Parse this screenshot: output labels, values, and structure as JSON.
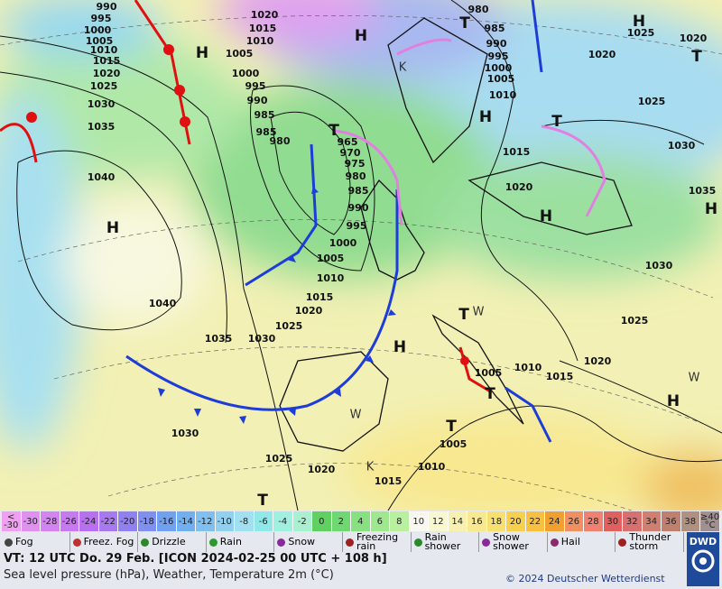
{
  "map": {
    "pressure_labels": [
      990,
      995,
      1000,
      1005,
      1010,
      1015,
      1020,
      1025,
      1030,
      1035,
      1040,
      1040,
      1035,
      1030,
      1025,
      1020,
      1015,
      1010,
      1005,
      1000,
      995,
      990,
      985,
      980,
      975,
      970,
      965,
      990,
      985,
      985,
      980,
      1000,
      995,
      1005,
      1010,
      1015,
      1020,
      980,
      985,
      990,
      995,
      1000,
      1005,
      1010,
      1015,
      1020,
      1025,
      1030,
      1035,
      1020,
      1020,
      1025,
      1030,
      1025,
      1020,
      1015,
      1010,
      1005,
      1005,
      1010,
      1015,
      1020,
      1025,
      1030
    ],
    "centers": [
      "H",
      "H",
      "H",
      "H",
      "H",
      "H",
      "H",
      "H",
      "H",
      "T",
      "T",
      "T",
      "T",
      "T",
      "T",
      "T",
      "T",
      "K",
      "K",
      "W",
      "W",
      "W"
    ]
  },
  "legend": {
    "low_label": [
      "<",
      "-30"
    ],
    "values": [
      -30,
      -28,
      -26,
      -24,
      -22,
      -20,
      -18,
      -16,
      -14,
      -12,
      -10,
      -8,
      -6,
      -4,
      -2,
      0,
      2,
      4,
      6,
      8,
      10,
      12,
      14,
      16,
      18,
      20,
      22,
      24,
      26,
      28,
      30,
      32,
      34,
      36,
      38
    ],
    "high_label": [
      "≥40",
      "°C"
    ],
    "colors": [
      "#f0a0f0",
      "#e090f0",
      "#d484f0",
      "#c878f0",
      "#b870f0",
      "#a878f0",
      "#9080f0",
      "#8090f0",
      "#70a0f0",
      "#70b0f0",
      "#80c0f0",
      "#90d0f0",
      "#a0e0f0",
      "#90e8e8",
      "#a0f0e0",
      "#a8f0d0",
      "#60d060",
      "#70d870",
      "#88e080",
      "#a0e890",
      "#b8f0a0",
      "#f8f8f0",
      "#f8f8d0",
      "#f8f0b0",
      "#f8e890",
      "#f8e070",
      "#f8d050",
      "#f8c040",
      "#f0a030",
      "#f09060",
      "#f08070",
      "#e06060",
      "#d87070",
      "#d08070",
      "#c08070",
      "#b09080",
      "#a09090"
    ],
    "weather": [
      "Fog",
      "Freez. Fog",
      "Drizzle",
      "Rain",
      "Snow",
      "Freezing rain",
      "Rain shower",
      "Snow shower",
      "Hail",
      "Thunder storm"
    ]
  },
  "footer": {
    "valid_time": "VT: 12 UTC Do.  29 Feb. [ICON 2024-02-25  00 UTC + 108 h]",
    "description": "Sea level pressure (hPa), Weather, Temperature 2m (°C)",
    "copyright": "© 2024 Deutscher Wetterdienst",
    "logo": "DWD"
  }
}
